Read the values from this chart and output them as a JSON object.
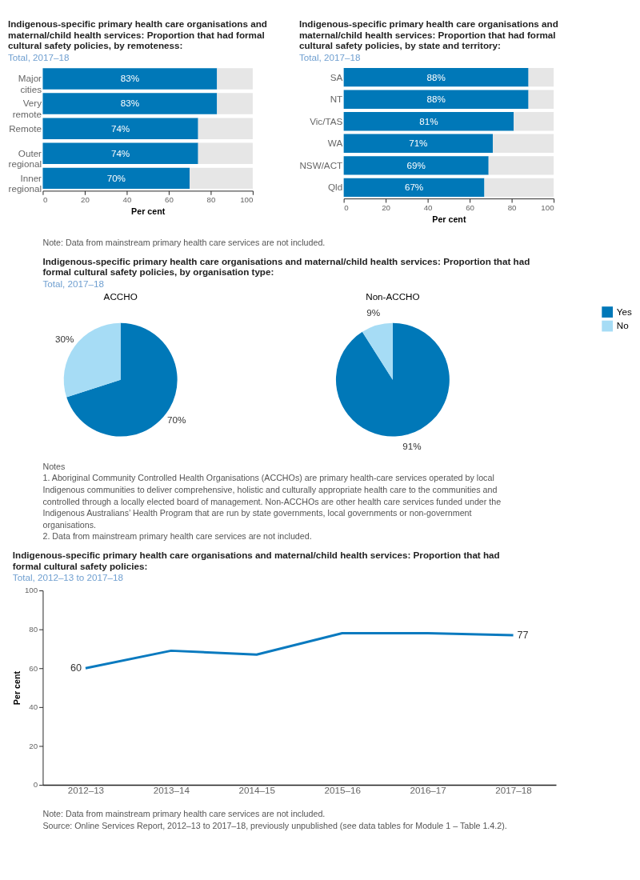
{
  "chart_data": [
    {
      "type": "bar",
      "orientation": "horizontal",
      "stacked": true,
      "title": "Indigenous-specific primary health care organisations and maternal/child health services: Proportion that had formal cultural safety policies, by remoteness:",
      "subtitle": "Total, 2017–18",
      "xlabel": "Per cent",
      "categories": [
        "Major cities",
        "Very remote",
        "Remote",
        "Outer regional",
        "Inner regional"
      ],
      "series": [
        {
          "color": "#0078b8",
          "values": [
            83,
            83,
            74,
            74,
            70
          ],
          "value_labels": [
            "83%",
            "83%",
            "74%",
            "74%",
            "70%"
          ]
        },
        {
          "color": "#e6e6e6",
          "values": [
            17,
            17,
            26,
            26,
            30
          ]
        }
      ],
      "xlim": [
        0,
        100
      ],
      "xticks": [
        0,
        20,
        40,
        60,
        80,
        100
      ],
      "grid": false,
      "legend": false
    },
    {
      "type": "bar",
      "orientation": "horizontal",
      "stacked": true,
      "title": "Indigenous-specific primary health care organisations and maternal/child health services: Proportion that had formal cultural safety policies, by state and territory:",
      "subtitle": "Total, 2017–18",
      "xlabel": "Per cent",
      "categories": [
        "SA",
        "NT",
        "Vic/TAS",
        "WA",
        "NSW/ACT",
        "Qld"
      ],
      "series": [
        {
          "color": "#0078b8",
          "values": [
            88,
            88,
            81,
            71,
            69,
            67
          ],
          "value_labels": [
            "88%",
            "88%",
            "81%",
            "71%",
            "69%",
            "67%"
          ]
        },
        {
          "color": "#e6e6e6",
          "values": [
            12,
            12,
            19,
            29,
            31,
            33
          ]
        }
      ],
      "xlim": [
        0,
        100
      ],
      "xticks": [
        0,
        20,
        40,
        60,
        80,
        100
      ],
      "grid": false,
      "legend": false,
      "annotations": [
        "Note: Data from mainstream primary health care services are not included."
      ]
    },
    {
      "type": "pie",
      "title": "Indigenous-specific primary health care organisations and maternal/child health services: Proportion that had formal cultural safety policies, by organisation type:",
      "subtitle": "Total, 2017–18",
      "xlabel": "ACCHO",
      "categories": [
        "Yes",
        "No"
      ],
      "values": [
        70,
        30
      ],
      "colors": [
        "#0078b8",
        "#a6dcf5"
      ],
      "value_labels": [
        "70%",
        "30%"
      ],
      "legend": "right"
    },
    {
      "type": "pie",
      "xlabel": "Non-ACCHO",
      "categories": [
        null,
        null
      ],
      "values": [
        91,
        9
      ],
      "colors": [
        "#0078b8",
        "#a6dcf5"
      ],
      "value_labels": [
        "91%",
        "9%"
      ],
      "legend": false,
      "annotations": [
        "Notes",
        "1. Aboriginal Community Controlled Health Organisations (ACCHOs) are primary health-care services operated by local Indigenous communities to deliver comprehensive, holistic and culturally appropriate health care to the communities and controlled through a locally elected board of management. Non-ACCHOs are other health care services funded under the Indigenous Australians’ Health Program that are run by state governments, local governments or non-government organisations.",
        "2. Data from mainstream primary health care services are not included."
      ]
    },
    {
      "type": "line",
      "title": "Indigenous-specific primary health care organisations and maternal/child health services: Proportion that had formal cultural safety policies:",
      "subtitle": "Total, 2012–13 to 2017–18",
      "ylabel": "Per cent",
      "categories": [
        "2012–13",
        "2013–14",
        "2014–15",
        "2015–16",
        "2016–17",
        "2017–18"
      ],
      "series": [
        {
          "color": "#0a7abf",
          "values": [
            60,
            69,
            67,
            78,
            78,
            77
          ],
          "value_labels": [
            "60",
            null,
            null,
            null,
            null,
            "77"
          ]
        }
      ],
      "ylim": [
        0,
        100
      ],
      "yticks": [
        0,
        20,
        40,
        60,
        80,
        100
      ],
      "grid": false,
      "legend": false,
      "marker": "none",
      "line_style": "solid",
      "annotations": [
        "Note: Data from mainstream primary health care services are not included.",
        "Source: Online Services Report, 2012–13 to 2017–18, previously unpublished (see data tables for Module 1 – Table 1.4.2)."
      ]
    }
  ]
}
